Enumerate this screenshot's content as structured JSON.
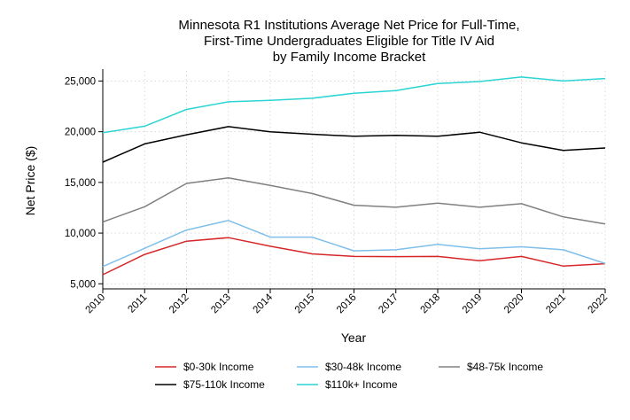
{
  "chart_data": {
    "type": "line",
    "title": [
      "Minnesota R1 Institutions Average Net Price for Full-Time,",
      "First-Time Undergraduates Eligible for Title IV Aid",
      "by Family Income Bracket"
    ],
    "xlabel": "Year",
    "ylabel": "Net Price ($)",
    "x": [
      "2010",
      "2011",
      "2012",
      "2013",
      "2014",
      "2015",
      "2016",
      "2017",
      "2018",
      "2019",
      "2020",
      "2021",
      "2022"
    ],
    "ylim": [
      4500,
      26000
    ],
    "yticks": [
      5000,
      10000,
      15000,
      20000,
      25000
    ],
    "ytick_labels": [
      "5,000",
      "10,000",
      "15,000",
      "20,000",
      "25,000"
    ],
    "grid": true,
    "legend_position": "bottom",
    "series": [
      {
        "name": "$0-30k Income",
        "color": "#d62728",
        "values": [
          5900,
          7900,
          9200,
          9550,
          8700,
          7950,
          7700,
          7680,
          7700,
          7280,
          7700,
          6750,
          6980
        ]
      },
      {
        "name": "$30-48k Income",
        "color": "#7fbfea",
        "values": [
          6700,
          8500,
          10300,
          11250,
          9600,
          9600,
          8250,
          8350,
          8900,
          8450,
          8650,
          8350,
          7000
        ]
      },
      {
        "name": "$48-75k Income",
        "color": "#808080",
        "values": [
          11100,
          12600,
          14900,
          15450,
          14700,
          13900,
          12750,
          12550,
          12950,
          12550,
          12900,
          11600,
          10900
        ]
      },
      {
        "name": "$75-110k Income",
        "color": "#000000",
        "values": [
          17000,
          18800,
          19700,
          20500,
          20000,
          19750,
          19550,
          19650,
          19550,
          19950,
          18900,
          18150,
          18400
        ]
      },
      {
        "name": "$110k+ Income",
        "color": "#2ad4d4",
        "values": [
          19900,
          20550,
          22200,
          22950,
          23100,
          23300,
          23800,
          24050,
          24750,
          24950,
          25400,
          25000,
          25250
        ]
      }
    ]
  }
}
